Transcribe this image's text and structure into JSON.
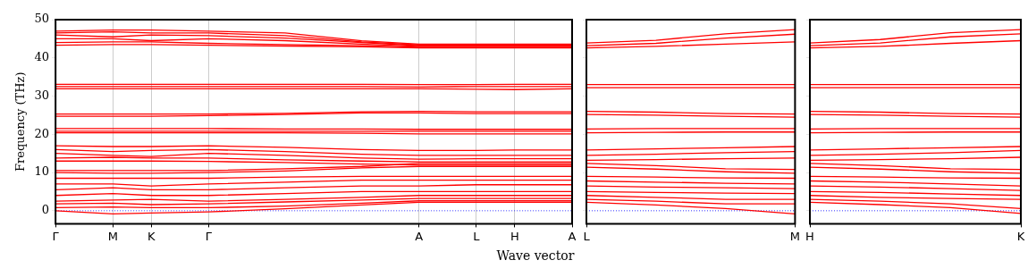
{
  "chart_data": [
    {
      "type": "line",
      "ylabel": "Frequency (THz)",
      "xlabel": "Wave vector",
      "color": "#ff0000",
      "grid": "x",
      "ylim": [
        -3.4,
        50
      ],
      "yticks": [
        0,
        10,
        20,
        30,
        40,
        50
      ],
      "categories": [
        "Γ",
        null,
        null,
        "M",
        null,
        "K",
        null,
        null,
        "Γ",
        null,
        null,
        null,
        null,
        null,
        null,
        null,
        null,
        null,
        null,
        "A",
        null,
        null,
        "L",
        null,
        "H",
        null,
        null,
        "A"
      ],
      "ref_lines": [
        {
          "axis": "y",
          "value": 0,
          "color": "#0000ff",
          "line_style": "dotted"
        }
      ],
      "series": [
        {
          "values": [
            47.0,
            null,
            null,
            47.3,
            null,
            47.3,
            null,
            null,
            47.0,
            null,
            null,
            null,
            46.5,
            null,
            null,
            null,
            44.5,
            null,
            null,
            43.6,
            null,
            null,
            43.6,
            null,
            43.6,
            null,
            null,
            43.6
          ]
        },
        {
          "values": [
            46.5,
            null,
            null,
            46.8,
            null,
            46.5,
            null,
            null,
            46.5,
            null,
            null,
            null,
            45.8,
            null,
            null,
            null,
            44.2,
            null,
            null,
            43.4,
            null,
            null,
            43.4,
            null,
            43.4,
            null,
            null,
            43.4
          ]
        },
        {
          "values": [
            46.0,
            null,
            null,
            45.5,
            null,
            46.0,
            null,
            null,
            45.8,
            null,
            null,
            null,
            45.2,
            null,
            null,
            null,
            44.0,
            null,
            null,
            43.2,
            null,
            null,
            43.2,
            null,
            43.2,
            null,
            null,
            43.2
          ]
        },
        {
          "values": [
            45.0,
            null,
            null,
            45.0,
            null,
            44.5,
            null,
            null,
            45.0,
            null,
            null,
            null,
            44.5,
            null,
            null,
            null,
            43.6,
            null,
            null,
            43.0,
            null,
            null,
            43.0,
            null,
            43.0,
            null,
            null,
            43.0
          ]
        },
        {
          "values": [
            44.0,
            null,
            null,
            44.2,
            null,
            44.2,
            null,
            null,
            43.8,
            null,
            null,
            null,
            43.5,
            null,
            null,
            null,
            43.2,
            null,
            null,
            42.8,
            null,
            null,
            42.8,
            null,
            42.8,
            null,
            null,
            42.8
          ]
        },
        {
          "values": [
            43.3,
            null,
            null,
            43.5,
            null,
            43.5,
            null,
            null,
            43.3,
            null,
            null,
            null,
            43.1,
            null,
            null,
            null,
            42.9,
            null,
            null,
            42.6,
            null,
            null,
            42.6,
            null,
            42.6,
            null,
            null,
            42.6
          ]
        },
        {
          "values": [
            33.1,
            null,
            null,
            33.1,
            null,
            33.1,
            null,
            null,
            33.1,
            null,
            null,
            null,
            33.1,
            null,
            null,
            null,
            33.1,
            null,
            null,
            33.0,
            null,
            null,
            33.0,
            null,
            33.1,
            null,
            null,
            33.1
          ]
        },
        {
          "values": [
            32.5,
            null,
            null,
            32.5,
            null,
            32.5,
            null,
            null,
            32.5,
            null,
            null,
            null,
            32.5,
            null,
            null,
            null,
            32.5,
            null,
            null,
            32.4,
            null,
            null,
            32.5,
            null,
            32.5,
            null,
            null,
            32.5
          ]
        },
        {
          "values": [
            31.9,
            null,
            null,
            31.9,
            null,
            31.9,
            null,
            null,
            31.9,
            null,
            null,
            null,
            31.9,
            null,
            null,
            null,
            31.9,
            null,
            null,
            31.9,
            null,
            null,
            31.8,
            null,
            31.7,
            null,
            null,
            31.9
          ]
        },
        {
          "values": [
            25.3,
            null,
            null,
            25.3,
            null,
            25.3,
            null,
            null,
            25.3,
            null,
            null,
            null,
            25.5,
            null,
            null,
            null,
            25.9,
            null,
            null,
            26.0,
            null,
            null,
            25.9,
            null,
            25.9,
            null,
            null,
            25.9
          ]
        },
        {
          "values": [
            24.7,
            null,
            null,
            24.7,
            null,
            24.7,
            null,
            null,
            24.9,
            null,
            null,
            null,
            25.2,
            null,
            null,
            null,
            25.6,
            null,
            null,
            25.6,
            null,
            null,
            25.4,
            null,
            25.4,
            null,
            null,
            25.4
          ]
        },
        {
          "values": [
            21.5,
            null,
            null,
            21.5,
            null,
            21.5,
            null,
            null,
            21.5,
            null,
            null,
            null,
            21.4,
            null,
            null,
            null,
            21.4,
            null,
            null,
            21.3,
            null,
            null,
            21.3,
            null,
            21.3,
            null,
            null,
            21.3
          ]
        },
        {
          "values": [
            20.8,
            null,
            null,
            20.8,
            null,
            20.8,
            null,
            null,
            20.8,
            null,
            null,
            null,
            20.8,
            null,
            null,
            null,
            20.8,
            null,
            null,
            20.8,
            null,
            null,
            20.8,
            null,
            20.8,
            null,
            null,
            20.8
          ]
        },
        {
          "values": [
            20.4,
            null,
            null,
            20.4,
            null,
            20.4,
            null,
            null,
            20.4,
            null,
            null,
            null,
            20.4,
            null,
            null,
            null,
            20.3,
            null,
            null,
            20.1,
            null,
            null,
            20.1,
            null,
            20.1,
            null,
            null,
            20.1
          ]
        },
        {
          "values": [
            17.0,
            null,
            null,
            16.8,
            null,
            16.8,
            null,
            null,
            17.0,
            null,
            null,
            null,
            16.6,
            null,
            null,
            null,
            16.0,
            null,
            null,
            15.8,
            null,
            null,
            15.8,
            null,
            15.9,
            null,
            null,
            15.9
          ]
        },
        {
          "values": [
            16.0,
            null,
            null,
            15.5,
            null,
            15.8,
            null,
            null,
            16.0,
            null,
            null,
            null,
            15.5,
            null,
            null,
            null,
            14.8,
            null,
            null,
            14.5,
            null,
            null,
            14.5,
            null,
            14.5,
            null,
            null,
            14.5
          ]
        },
        {
          "values": [
            15.0,
            null,
            null,
            14.5,
            null,
            14.2,
            null,
            null,
            15.0,
            null,
            null,
            null,
            14.5,
            null,
            null,
            null,
            13.8,
            null,
            null,
            13.5,
            null,
            null,
            13.6,
            null,
            13.6,
            null,
            null,
            13.6
          ]
        },
        {
          "values": [
            13.8,
            null,
            null,
            14.0,
            null,
            13.8,
            null,
            null,
            13.8,
            null,
            null,
            null,
            13.3,
            null,
            null,
            null,
            13.0,
            null,
            null,
            12.8,
            null,
            null,
            12.8,
            null,
            12.8,
            null,
            null,
            12.8
          ]
        },
        {
          "values": [
            13.0,
            null,
            null,
            13.0,
            null,
            13.0,
            null,
            null,
            12.9,
            null,
            null,
            null,
            12.6,
            null,
            null,
            null,
            12.2,
            null,
            null,
            12.0,
            null,
            null,
            12.0,
            null,
            12.0,
            null,
            null,
            12.0
          ]
        },
        {
          "values": [
            10.5,
            null,
            null,
            10.5,
            null,
            10.5,
            null,
            null,
            10.5,
            null,
            null,
            null,
            11.0,
            null,
            null,
            null,
            11.6,
            null,
            null,
            12.4,
            null,
            null,
            12.4,
            null,
            12.4,
            null,
            null,
            12.4
          ]
        },
        {
          "values": [
            10.0,
            null,
            null,
            9.8,
            null,
            9.8,
            null,
            null,
            10.0,
            null,
            null,
            null,
            10.4,
            null,
            null,
            null,
            11.2,
            null,
            null,
            11.6,
            null,
            null,
            11.6,
            null,
            11.6,
            null,
            null,
            11.6
          ]
        },
        {
          "values": [
            8.5,
            null,
            null,
            8.5,
            null,
            8.5,
            null,
            null,
            8.5,
            null,
            null,
            null,
            8.8,
            null,
            null,
            null,
            9.0,
            null,
            null,
            9.0,
            null,
            null,
            9.0,
            null,
            9.0,
            null,
            null,
            9.0
          ]
        },
        {
          "values": [
            7.0,
            null,
            null,
            7.0,
            null,
            6.5,
            null,
            null,
            7.0,
            null,
            null,
            null,
            7.5,
            null,
            null,
            null,
            8.0,
            null,
            null,
            8.0,
            null,
            null,
            8.0,
            null,
            8.0,
            null,
            null,
            8.0
          ]
        },
        {
          "values": [
            5.5,
            null,
            null,
            6.0,
            null,
            5.5,
            null,
            null,
            5.5,
            null,
            null,
            null,
            6.0,
            null,
            null,
            null,
            6.5,
            null,
            null,
            6.5,
            null,
            null,
            6.8,
            null,
            6.8,
            null,
            null,
            6.8
          ]
        },
        {
          "values": [
            4.0,
            null,
            null,
            4.5,
            null,
            4.0,
            null,
            null,
            4.0,
            null,
            null,
            null,
            4.5,
            null,
            null,
            null,
            5.0,
            null,
            null,
            5.0,
            null,
            null,
            5.0,
            null,
            5.0,
            null,
            null,
            5.0
          ]
        },
        {
          "values": [
            2.5,
            null,
            null,
            2.8,
            null,
            3.0,
            null,
            null,
            2.5,
            null,
            null,
            null,
            3.0,
            null,
            null,
            null,
            3.5,
            null,
            null,
            4.0,
            null,
            null,
            4.0,
            null,
            4.0,
            null,
            null,
            4.0
          ]
        },
        {
          "values": [
            1.8,
            null,
            null,
            2.0,
            null,
            1.6,
            null,
            null,
            1.8,
            null,
            null,
            null,
            2.3,
            null,
            null,
            null,
            2.8,
            null,
            null,
            3.2,
            null,
            null,
            3.2,
            null,
            3.2,
            null,
            null,
            3.2
          ]
        },
        {
          "values": [
            0.8,
            null,
            null,
            1.0,
            null,
            0.8,
            null,
            null,
            0.8,
            null,
            null,
            null,
            1.2,
            null,
            null,
            null,
            2.0,
            null,
            null,
            2.6,
            null,
            null,
            2.6,
            null,
            2.6,
            null,
            null,
            2.6
          ]
        },
        {
          "values": [
            0,
            null,
            null,
            -0.8,
            null,
            -0.6,
            null,
            null,
            -0.3,
            null,
            null,
            null,
            0.5,
            null,
            null,
            null,
            1.5,
            null,
            null,
            2.2,
            null,
            null,
            2.2,
            null,
            2.2,
            null,
            null,
            2.2
          ]
        }
      ]
    },
    {
      "type": "line",
      "color": "#ff0000",
      "tick_labels": "x",
      "ylim": [
        -3.4,
        50
      ],
      "yticks": [
        0,
        10,
        20,
        30,
        40,
        50
      ],
      "categories": [
        "L",
        null,
        null,
        "M"
      ],
      "ref_lines": [
        {
          "axis": "y",
          "value": 0,
          "color": "#0000ff",
          "line_style": "dotted"
        }
      ],
      "series": [
        {
          "values": [
            43.9,
            44.6,
            46.3,
            47.4
          ]
        },
        {
          "values": [
            43.2,
            43.8,
            45.2,
            46.2
          ]
        },
        {
          "values": [
            42.6,
            43.0,
            43.6,
            44.2
          ]
        },
        {
          "values": [
            33.0,
            33.0,
            33.0,
            33.0
          ]
        },
        {
          "values": [
            32.2,
            32.2,
            32.2,
            32.2
          ]
        },
        {
          "values": [
            26.0,
            25.8,
            25.4,
            25.3
          ]
        },
        {
          "values": [
            25.2,
            25.0,
            24.7,
            24.5
          ]
        },
        {
          "values": [
            21.4,
            21.5,
            21.5,
            21.5
          ]
        },
        {
          "values": [
            20.4,
            20.5,
            20.6,
            20.6
          ]
        },
        {
          "values": [
            15.9,
            16.2,
            16.5,
            16.8
          ]
        },
        {
          "values": [
            14.5,
            14.8,
            15.2,
            15.5
          ]
        },
        {
          "values": [
            13.2,
            13.4,
            13.6,
            13.8
          ]
        },
        {
          "values": [
            12.4,
            11.8,
            11.0,
            10.8
          ]
        },
        {
          "values": [
            11.4,
            10.9,
            10.2,
            9.8
          ]
        },
        {
          "values": [
            9.0,
            8.8,
            8.6,
            8.5
          ]
        },
        {
          "values": [
            7.8,
            7.5,
            7.2,
            7.0
          ]
        },
        {
          "values": [
            6.5,
            6.2,
            6.0,
            5.8
          ]
        },
        {
          "values": [
            5.0,
            4.8,
            4.6,
            4.5
          ]
        },
        {
          "values": [
            4.0,
            3.5,
            3.0,
            3.0
          ]
        },
        {
          "values": [
            3.0,
            2.5,
            1.8,
            1.8
          ]
        },
        {
          "values": [
            2.2,
            1.5,
            0.6,
            -0.8
          ]
        }
      ]
    },
    {
      "type": "line",
      "color": "#ff0000",
      "tick_labels": "x",
      "ylim": [
        -3.4,
        50
      ],
      "yticks": [
        0,
        10,
        20,
        30,
        40,
        50
      ],
      "categories": [
        "H",
        null,
        null,
        "K"
      ],
      "ref_lines": [
        {
          "axis": "y",
          "value": 0,
          "color": "#0000ff",
          "line_style": "dotted"
        }
      ],
      "series": [
        {
          "values": [
            43.9,
            44.8,
            46.6,
            47.4
          ]
        },
        {
          "values": [
            43.2,
            43.9,
            45.5,
            46.3
          ]
        },
        {
          "values": [
            42.6,
            43.0,
            43.8,
            44.5
          ]
        },
        {
          "values": [
            33.0,
            33.0,
            33.0,
            33.0
          ]
        },
        {
          "values": [
            32.2,
            32.2,
            32.2,
            32.2
          ]
        },
        {
          "values": [
            26.0,
            25.8,
            25.4,
            25.3
          ]
        },
        {
          "values": [
            25.2,
            25.0,
            24.7,
            24.5
          ]
        },
        {
          "values": [
            21.4,
            21.5,
            21.5,
            21.5
          ]
        },
        {
          "values": [
            20.4,
            20.5,
            20.6,
            20.6
          ]
        },
        {
          "values": [
            15.9,
            16.2,
            16.5,
            16.8
          ]
        },
        {
          "values": [
            14.5,
            14.8,
            15.2,
            15.8
          ]
        },
        {
          "values": [
            13.2,
            13.4,
            13.6,
            14.0
          ]
        },
        {
          "values": [
            12.4,
            11.8,
            11.0,
            10.8
          ]
        },
        {
          "values": [
            11.4,
            10.9,
            10.2,
            9.8
          ]
        },
        {
          "values": [
            9.0,
            8.8,
            8.6,
            8.5
          ]
        },
        {
          "values": [
            7.8,
            7.5,
            7.0,
            6.5
          ]
        },
        {
          "values": [
            6.5,
            6.2,
            5.8,
            5.3
          ]
        },
        {
          "values": [
            5.0,
            4.8,
            4.4,
            4.0
          ]
        },
        {
          "values": [
            4.0,
            3.5,
            3.2,
            3.0
          ]
        },
        {
          "values": [
            3.0,
            2.5,
            1.8,
            0.6
          ]
        },
        {
          "values": [
            2.2,
            1.6,
            0.8,
            -0.7
          ]
        }
      ]
    }
  ]
}
